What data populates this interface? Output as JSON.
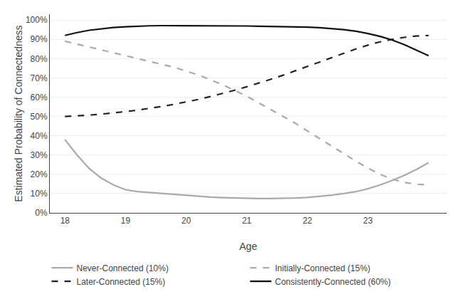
{
  "chart_data": {
    "type": "line",
    "xlabel": "Age",
    "ylabel": "Estimated Probability of Connectedness",
    "x": [
      18.0,
      18.2,
      18.4,
      18.6,
      18.8,
      19.0,
      19.2,
      19.4,
      19.6,
      19.8,
      20.0,
      20.2,
      20.4,
      20.6,
      20.8,
      21.0,
      21.2,
      21.4,
      21.6,
      21.8,
      22.0,
      22.2,
      22.4,
      22.6,
      22.8,
      23.0,
      23.2,
      23.4,
      23.6,
      23.8,
      24.0
    ],
    "series": [
      {
        "name": "Never-Connected (10%)",
        "color": "#aaaaaa",
        "line_style": "solid",
        "values": [
          0.38,
          0.3,
          0.23,
          0.18,
          0.145,
          0.12,
          0.11,
          0.105,
          0.1,
          0.095,
          0.09,
          0.085,
          0.082,
          0.079,
          0.077,
          0.075,
          0.074,
          0.074,
          0.075,
          0.077,
          0.08,
          0.085,
          0.092,
          0.1,
          0.11,
          0.125,
          0.145,
          0.168,
          0.195,
          0.225,
          0.26
        ]
      },
      {
        "name": "Initially-Connected (15%)",
        "color": "#aaaaaa",
        "line_style": "dashed",
        "values": [
          0.89,
          0.875,
          0.86,
          0.845,
          0.83,
          0.815,
          0.8,
          0.785,
          0.77,
          0.755,
          0.735,
          0.715,
          0.69,
          0.665,
          0.635,
          0.605,
          0.57,
          0.535,
          0.5,
          0.465,
          0.425,
          0.385,
          0.345,
          0.305,
          0.268,
          0.232,
          0.2,
          0.175,
          0.158,
          0.148,
          0.145
        ]
      },
      {
        "name": "Later-Connected (15%)",
        "color": "#222222",
        "line_style": "dashed",
        "values": [
          0.5,
          0.503,
          0.507,
          0.512,
          0.518,
          0.525,
          0.533,
          0.542,
          0.552,
          0.563,
          0.575,
          0.588,
          0.603,
          0.619,
          0.636,
          0.654,
          0.673,
          0.693,
          0.714,
          0.736,
          0.759,
          0.782,
          0.805,
          0.828,
          0.85,
          0.87,
          0.887,
          0.9,
          0.91,
          0.917,
          0.92
        ]
      },
      {
        "name": "Consistently-Connected (60%)",
        "color": "#111111",
        "line_style": "solid",
        "values": [
          0.92,
          0.935,
          0.947,
          0.955,
          0.961,
          0.965,
          0.968,
          0.97,
          0.971,
          0.971,
          0.971,
          0.971,
          0.97,
          0.97,
          0.969,
          0.969,
          0.968,
          0.967,
          0.966,
          0.965,
          0.963,
          0.96,
          0.956,
          0.95,
          0.942,
          0.93,
          0.915,
          0.896,
          0.872,
          0.845,
          0.815
        ]
      }
    ],
    "xlim": [
      17.75,
      24.3
    ],
    "ylim": [
      0.0,
      1.03
    ],
    "xticks": [
      18,
      19,
      20,
      21,
      22,
      23
    ],
    "yticks": [
      {
        "value": 0.0,
        "label": "0%"
      },
      {
        "value": 0.1,
        "label": "10%"
      },
      {
        "value": 0.2,
        "label": "20%"
      },
      {
        "value": 0.3,
        "label": "30%"
      },
      {
        "value": 0.4,
        "label": "40%"
      },
      {
        "value": 0.5,
        "label": "50%"
      },
      {
        "value": 0.6,
        "label": "60%"
      },
      {
        "value": 0.7,
        "label": "70%"
      },
      {
        "value": 0.8,
        "label": "80%"
      },
      {
        "value": 0.9,
        "label": "90%"
      },
      {
        "value": 1.0,
        "label": "100%"
      }
    ],
    "grid": "y",
    "legend": "bottom"
  }
}
